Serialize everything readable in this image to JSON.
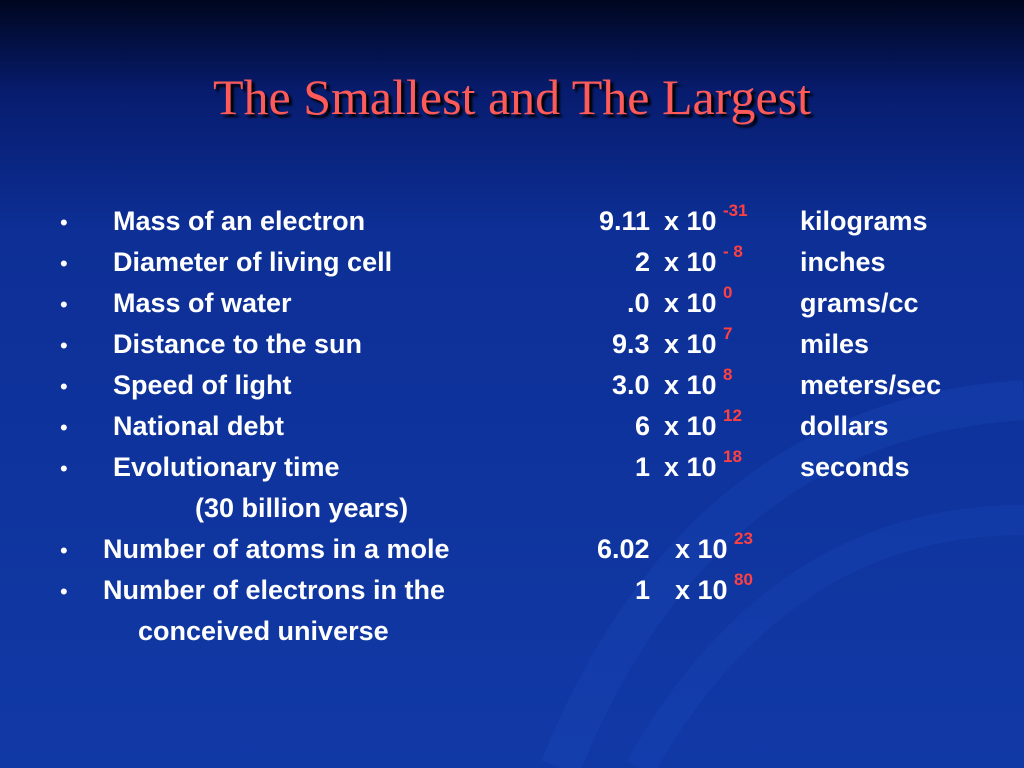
{
  "title": "The Smallest and The Largest",
  "items": [
    {
      "label": "Mass of an electron",
      "mantissa": "9.11",
      "base": "x 10",
      "exponent": "-31",
      "unit": "kilograms"
    },
    {
      "label": "Diameter of living cell",
      "mantissa": "2",
      "base": "x 10",
      "exponent": "- 8",
      "unit": "inches"
    },
    {
      "label": "Mass of water",
      "mantissa": ".0",
      "base": "x 10",
      "exponent": "0",
      "unit": "grams/cc"
    },
    {
      "label": "Distance to the sun",
      "mantissa": "9.3",
      "base": "x 10",
      "exponent": "7",
      "unit": "miles"
    },
    {
      "label": "Speed of light",
      "mantissa": "3.0",
      "base": "x 10",
      "exponent": "8",
      "unit": "meters/sec"
    },
    {
      "label": "National debt",
      "mantissa": "6",
      "base": "x 10",
      "exponent": "12",
      "unit": "dollars"
    },
    {
      "label": "Evolutionary time",
      "mantissa": "1",
      "base": "x 10",
      "exponent": "18",
      "unit": "seconds",
      "note": "(30 billion years)"
    },
    {
      "label": "Number of atoms in a mole",
      "mantissa": "6.02",
      "base": "x 10",
      "exponent": "23"
    },
    {
      "label": "Number of electrons in the",
      "mantissa": "1",
      "base": "x 10",
      "exponent": "80",
      "note": "conceived universe"
    }
  ]
}
